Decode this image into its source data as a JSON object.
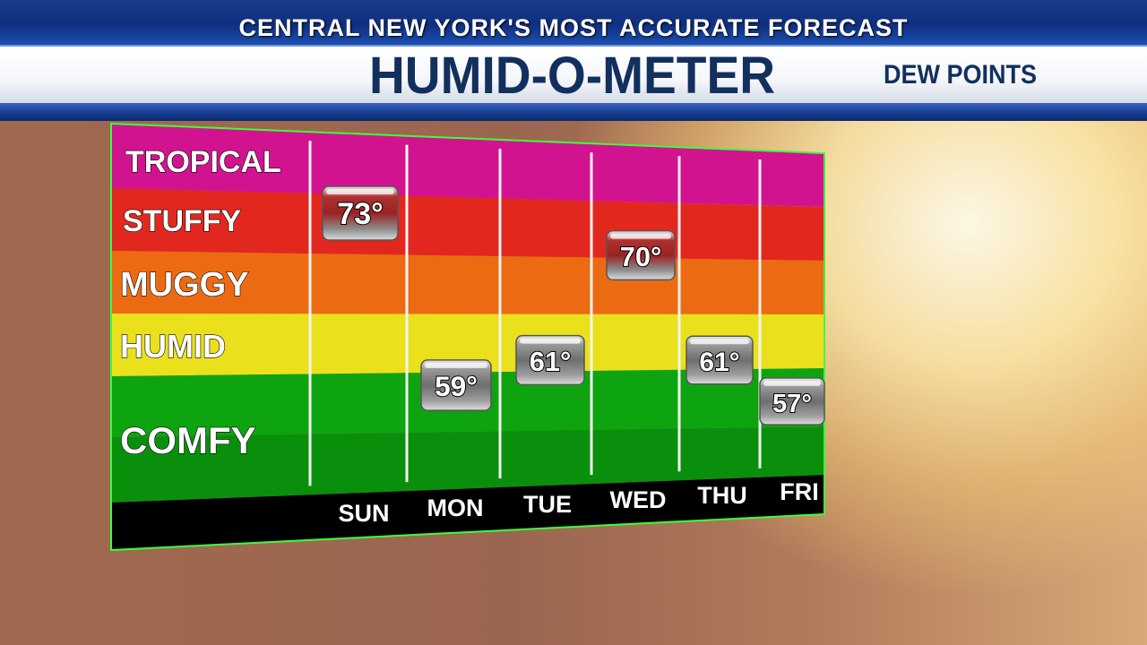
{
  "header": {
    "tagline": "CENTRAL NEW YORK'S MOST ACCURATE FORECAST",
    "title": "HUMID-O-METER",
    "subtitle": "DEW POINTS"
  },
  "colors": {
    "tropical": "#d21390",
    "stuffy": "#e2271f",
    "muggy": "#ec6b12",
    "humid": "#eae11c",
    "comfy": "#0ea410",
    "comfy_dark": "#0a8f0c",
    "frame": "#3cff3c",
    "day_bar": "#000000"
  },
  "chart_data": {
    "type": "table",
    "title": "HUMID-O-METER",
    "subtitle": "DEW POINTS",
    "categories": [
      "TROPICAL",
      "STUFFY",
      "MUGGY",
      "HUMID",
      "COMFY"
    ],
    "x": [
      "SUN",
      "MON",
      "TUE",
      "WED",
      "THU",
      "FRI"
    ],
    "series": [
      {
        "values": [
          73,
          59,
          61,
          70,
          61,
          57
        ],
        "labels": [
          "73°",
          "59°",
          "61°",
          "70°",
          "61°",
          "57°"
        ]
      }
    ]
  }
}
